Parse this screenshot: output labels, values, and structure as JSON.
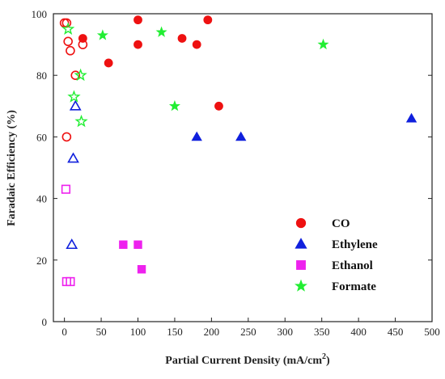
{
  "chart_data": {
    "type": "scatter",
    "xlabel": "Partial Current Density (mA/cm",
    "xlabel_superscript": "2",
    "xlabel_suffix": ")",
    "ylabel": "Faradaic Efficiency (%)",
    "xlim": [
      -15,
      500
    ],
    "ylim": [
      0,
      100
    ],
    "xticks": [
      0,
      50,
      100,
      150,
      200,
      250,
      300,
      350,
      400,
      450,
      500
    ],
    "yticks": [
      0,
      20,
      40,
      60,
      80,
      100
    ],
    "grid": false,
    "legend_position": "bottom-right",
    "series": [
      {
        "name": "CO",
        "color": "#ee1111",
        "marker": "circle",
        "filled": [
          {
            "x": 25,
            "y": 92
          },
          {
            "x": 60,
            "y": 84
          },
          {
            "x": 100,
            "y": 98
          },
          {
            "x": 100,
            "y": 90
          },
          {
            "x": 160,
            "y": 92
          },
          {
            "x": 180,
            "y": 90
          },
          {
            "x": 195,
            "y": 98
          },
          {
            "x": 210,
            "y": 70
          }
        ],
        "open": [
          {
            "x": 0,
            "y": 97
          },
          {
            "x": 3,
            "y": 97
          },
          {
            "x": 5,
            "y": 91
          },
          {
            "x": 8,
            "y": 88
          },
          {
            "x": 15,
            "y": 80
          },
          {
            "x": 25,
            "y": 90
          },
          {
            "x": 3,
            "y": 60
          }
        ]
      },
      {
        "name": "Ethylene",
        "color": "#1020dd",
        "marker": "triangle",
        "filled": [
          {
            "x": 180,
            "y": 60
          },
          {
            "x": 240,
            "y": 60
          },
          {
            "x": 472,
            "y": 66
          }
        ],
        "open": [
          {
            "x": 15,
            "y": 70
          },
          {
            "x": 12,
            "y": 53
          },
          {
            "x": 10,
            "y": 25
          }
        ]
      },
      {
        "name": "Ethanol",
        "color": "#ee22ee",
        "marker": "square",
        "filled": [
          {
            "x": 80,
            "y": 25
          },
          {
            "x": 100,
            "y": 25
          },
          {
            "x": 105,
            "y": 17
          }
        ],
        "open": [
          {
            "x": 2,
            "y": 43
          },
          {
            "x": 3,
            "y": 13
          },
          {
            "x": 8,
            "y": 13
          }
        ]
      },
      {
        "name": "Formate",
        "color": "#22ee33",
        "marker": "star",
        "filled": [
          {
            "x": 52,
            "y": 93
          },
          {
            "x": 132,
            "y": 94
          },
          {
            "x": 150,
            "y": 70
          },
          {
            "x": 352,
            "y": 90
          }
        ],
        "open": [
          {
            "x": 5,
            "y": 95
          },
          {
            "x": 22,
            "y": 80
          },
          {
            "x": 13,
            "y": 73
          },
          {
            "x": 23,
            "y": 65
          }
        ]
      }
    ]
  }
}
